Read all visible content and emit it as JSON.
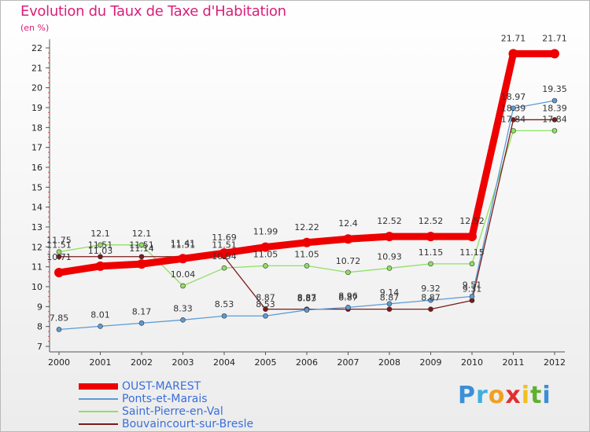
{
  "chart_data": {
    "type": "line",
    "title": "Evolution du Taux de Taxe d'Habitation",
    "unit": "(en %)",
    "x": [
      "2000",
      "2001",
      "2002",
      "2003",
      "2004",
      "2005",
      "2006",
      "2007",
      "2008",
      "2009",
      "2010",
      "2011",
      "2012"
    ],
    "yticks": [
      7,
      8,
      9,
      10,
      11,
      12,
      13,
      14,
      15,
      16,
      17,
      18,
      19,
      20,
      21,
      22
    ],
    "ylim": [
      7,
      22
    ],
    "grid": false,
    "legend_position": "bottom-left",
    "series": [
      {
        "name": "OUST-MAREST",
        "color": "#ee0000",
        "values": [
          10.71,
          11.03,
          11.14,
          11.41,
          11.69,
          11.99,
          12.22,
          12.4,
          12.52,
          12.52,
          12.52,
          21.71,
          21.71
        ]
      },
      {
        "name": "Ponts-et-Marais",
        "color": "#5b9bd5",
        "values": [
          7.85,
          8.01,
          8.17,
          8.33,
          8.53,
          8.53,
          8.83,
          8.96,
          9.14,
          9.32,
          9.51,
          18.97,
          19.35
        ]
      },
      {
        "name": "Saint-Pierre-en-Val",
        "color": "#90e060",
        "values": [
          11.75,
          12.1,
          12.1,
          10.04,
          10.94,
          11.05,
          11.05,
          10.72,
          10.93,
          11.15,
          11.15,
          17.84,
          17.84
        ]
      },
      {
        "name": "Bouvaincourt-sur-Bresle",
        "color": "#7a1a1a",
        "values": [
          11.51,
          11.51,
          11.51,
          11.51,
          11.51,
          8.87,
          8.87,
          8.87,
          8.87,
          8.87,
          9.31,
          18.39,
          18.39
        ]
      }
    ]
  },
  "logo": {
    "letters": [
      "P",
      "r",
      "o",
      "x",
      "i",
      "t",
      "i"
    ],
    "colors": [
      "#3b8fd8",
      "#3bb0e0",
      "#f0a020",
      "#e03030",
      "#f0c020",
      "#60b030",
      "#3b8fd8"
    ]
  }
}
